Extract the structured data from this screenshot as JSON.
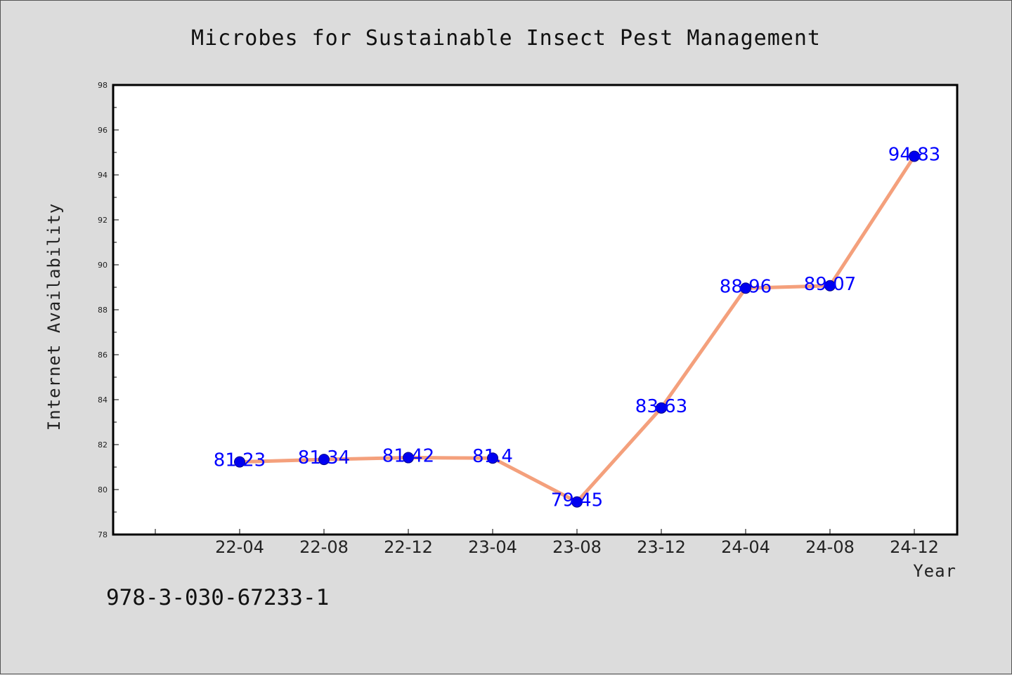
{
  "chart_data": {
    "type": "line",
    "title": "Microbes for Sustainable Insect Pest Management",
    "xlabel": "Year",
    "ylabel": "Internet Availability",
    "categories": [
      "22-04",
      "22-08",
      "22-12",
      "23-04",
      "23-08",
      "23-12",
      "24-04",
      "24-08",
      "24-12"
    ],
    "series": [
      {
        "values": [
          81.23,
          81.34,
          81.42,
          81.4,
          79.45,
          83.63,
          88.96,
          89.07,
          94.83
        ],
        "data_labels": [
          "81.23",
          "81.34",
          "81.42",
          "81.4",
          "79.45",
          "83.63",
          "88.96",
          "89.07",
          "94.83"
        ]
      }
    ],
    "ylim": [
      78,
      98
    ],
    "yticks": [
      "78",
      "80",
      "82",
      "84",
      "86",
      "88",
      "90",
      "92",
      "94",
      "96",
      "98"
    ],
    "grid": false,
    "colors": {
      "line": "#f4a07c",
      "marker": "#0000ee",
      "label": "#0000ff"
    }
  },
  "footer": {
    "isbn": "978-3-030-67233-1"
  }
}
